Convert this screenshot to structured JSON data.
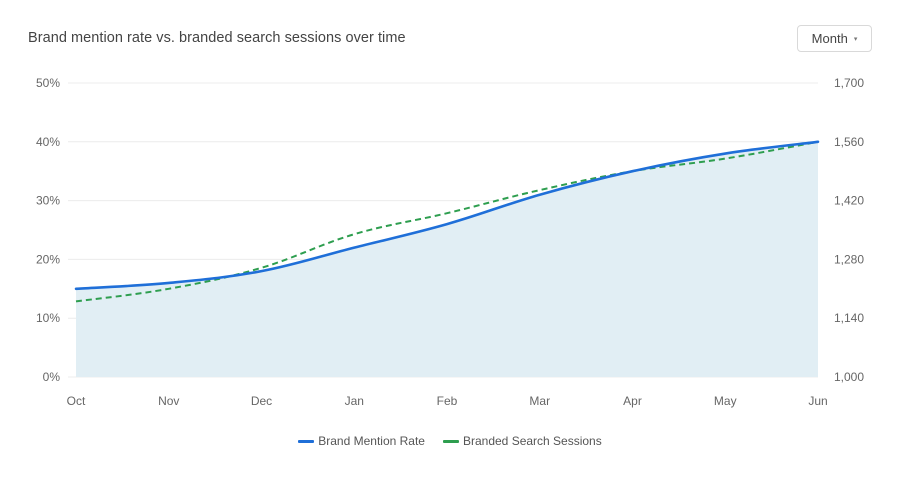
{
  "header": {
    "title": "Brand mention rate vs. branded search sessions over time",
    "period_select": {
      "selected": "Month",
      "caret_icon": "▾"
    }
  },
  "legend": {
    "items": [
      {
        "label": "Brand Mention Rate",
        "color": "#1f6fd8"
      },
      {
        "label": "Branded Search Sessions",
        "color": "#2e9e4f"
      }
    ]
  },
  "axes": {
    "left_ticks": [
      "0%",
      "10%",
      "20%",
      "30%",
      "40%",
      "50%"
    ],
    "right_ticks": [
      "1,000",
      "1,140",
      "1,280",
      "1,420",
      "1,560",
      "1,700"
    ],
    "x_ticks": [
      "Oct",
      "Nov",
      "Dec",
      "Jan",
      "Feb",
      "Mar",
      "Apr",
      "May",
      "Jun"
    ]
  },
  "colors": {
    "brand_mention_line": "#1f6fd8",
    "branded_search_line": "#2e9e4f",
    "area_fill": "#e1eef4",
    "gridline": "#ececec"
  },
  "chart_data": {
    "type": "line",
    "title": "Brand mention rate vs. branded search sessions over time",
    "categories": [
      "Oct",
      "Nov",
      "Dec",
      "Jan",
      "Feb",
      "Mar",
      "Apr",
      "May",
      "Jun"
    ],
    "series": [
      {
        "name": "Brand Mention Rate",
        "axis": "left",
        "unit": "%",
        "style": "solid line with area fill",
        "values": [
          15,
          16,
          18,
          22,
          26,
          31,
          35,
          38,
          40
        ]
      },
      {
        "name": "Branded Search Sessions",
        "axis": "right",
        "style": "dashed line",
        "values": [
          1180,
          1210,
          1260,
          1340,
          1390,
          1445,
          1490,
          1520,
          1560
        ]
      }
    ],
    "xlabel": "",
    "ylabel_left": "",
    "ylabel_right": "",
    "ylim_left": [
      0,
      50
    ],
    "ylim_right": [
      1000,
      1700
    ],
    "grid": true,
    "legend_position": "bottom"
  }
}
